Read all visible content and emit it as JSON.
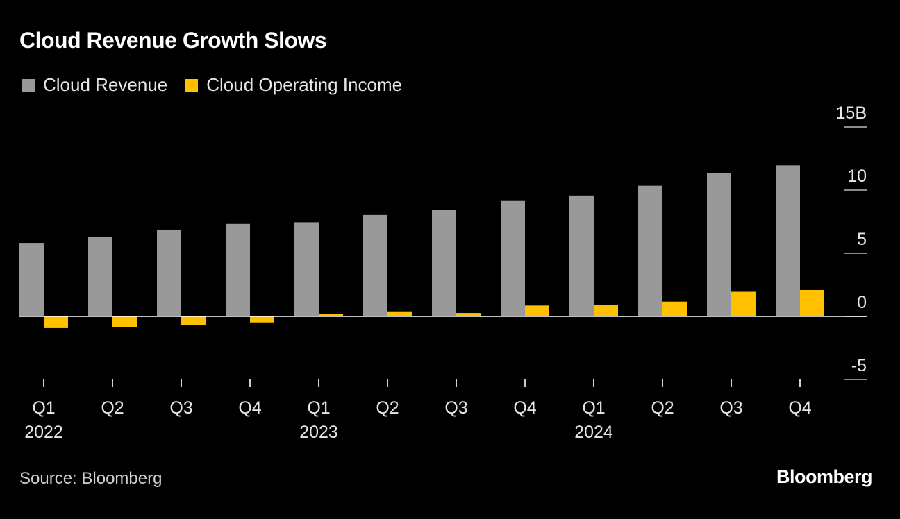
{
  "chart_data": {
    "type": "bar",
    "title": "Cloud Revenue Growth Slows",
    "categories": [
      "Q1",
      "Q2",
      "Q3",
      "Q4",
      "Q1",
      "Q2",
      "Q3",
      "Q4",
      "Q1",
      "Q2",
      "Q3",
      "Q4"
    ],
    "year_labels": [
      "2022",
      "",
      "",
      "",
      "2023",
      "",
      "",
      "",
      "2024",
      "",
      "",
      ""
    ],
    "series": [
      {
        "name": "Cloud Revenue",
        "color": "#999999",
        "values": [
          5.82,
          6.28,
          6.87,
          7.32,
          7.45,
          8.03,
          8.41,
          9.19,
          9.57,
          10.35,
          11.35,
          11.96
        ]
      },
      {
        "name": "Cloud Operating Income",
        "color": "#ffc000",
        "values": [
          -0.93,
          -0.86,
          -0.7,
          -0.48,
          0.19,
          0.4,
          0.27,
          0.86,
          0.9,
          1.17,
          1.95,
          2.09
        ]
      }
    ],
    "yticks": [
      15,
      10,
      5,
      0,
      -5
    ],
    "ytick_labels": [
      "15B",
      "10",
      "5",
      "0",
      "-5"
    ],
    "ylim": [
      -5,
      15
    ],
    "xlabel": "",
    "ylabel": "",
    "legend": "top-left",
    "grid": false
  },
  "source": "Source: Bloomberg",
  "logo": "Bloomberg"
}
